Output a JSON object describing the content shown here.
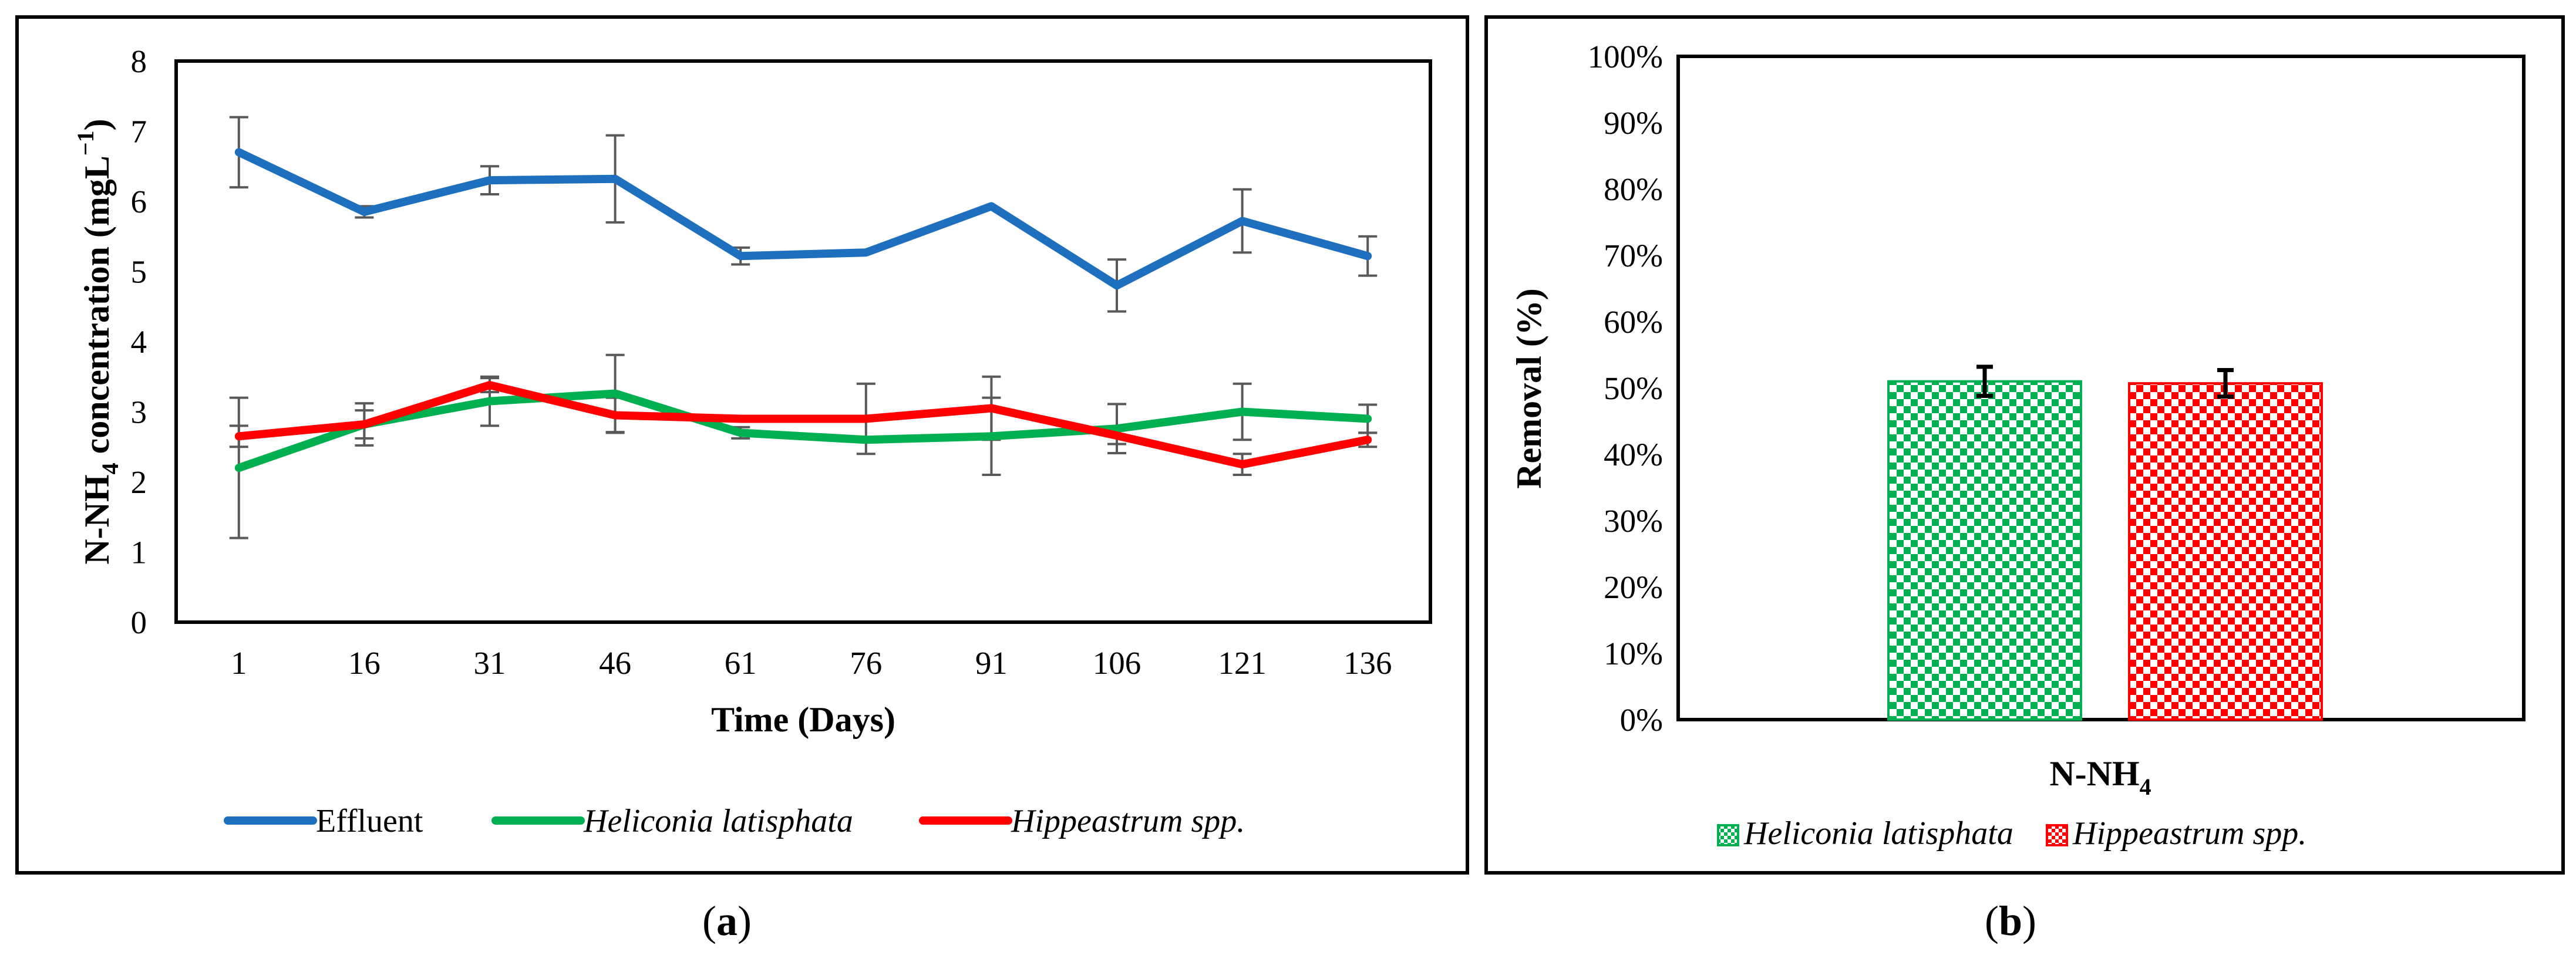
{
  "chart_data": [
    {
      "id": "a",
      "type": "line",
      "panel_label": "a",
      "x": [
        1,
        16,
        31,
        46,
        61,
        76,
        91,
        106,
        121,
        136
      ],
      "xlabel": "Time (Days)",
      "ylabel_parts": [
        "N-NH",
        "4",
        " concentration (mgL",
        "−1",
        ")"
      ],
      "ylim": [
        0,
        8
      ],
      "yticks": [
        0,
        1,
        2,
        3,
        4,
        5,
        6,
        7,
        8
      ],
      "grid": false,
      "legend": "bottom",
      "series": [
        {
          "name": "Effluent",
          "italic": false,
          "color": "#1f6fbf",
          "values": [
            6.7,
            5.85,
            6.3,
            6.32,
            5.22,
            5.27,
            5.93,
            4.8,
            5.72,
            5.22
          ],
          "errors": [
            0.5,
            0.08,
            0.2,
            0.62,
            0.12,
            0,
            0,
            0.37,
            0.45,
            0.28
          ]
        },
        {
          "name": "Heliconia latisphata",
          "italic": true,
          "color": "#00b050",
          "values": [
            2.2,
            2.82,
            3.15,
            3.26,
            2.7,
            2.6,
            2.65,
            2.76,
            3.0,
            2.9
          ],
          "errors": [
            1.0,
            0.2,
            0.35,
            0.55,
            0.08,
            0,
            0.55,
            0.35,
            0.4,
            0.2
          ]
        },
        {
          "name": "Hippeastrum spp.",
          "italic": true,
          "color": "#ff0000",
          "values": [
            2.65,
            2.82,
            3.38,
            2.95,
            2.9,
            2.9,
            3.05,
            2.66,
            2.25,
            2.6
          ],
          "errors": [
            0.15,
            0.3,
            0.1,
            0.25,
            0,
            0.5,
            0.45,
            0.12,
            0.15,
            0.1
          ]
        }
      ]
    },
    {
      "id": "b",
      "type": "bar",
      "panel_label": "b",
      "categories": [
        "N-NH4"
      ],
      "category_label_parts": [
        "N-NH",
        "4"
      ],
      "ylabel": "Removal (%)",
      "ylim": [
        0,
        100
      ],
      "yticks": [
        "0%",
        "10%",
        "20%",
        "30%",
        "40%",
        "50%",
        "60%",
        "70%",
        "80%",
        "90%",
        "100%"
      ],
      "grid": false,
      "legend": "bottom",
      "series": [
        {
          "name": "Heliconia latisphata",
          "italic": true,
          "color": "#00b050",
          "pattern": "checkerboard",
          "values": [
            51
          ],
          "errors": [
            2.2
          ]
        },
        {
          "name": "Hippeastrum spp.",
          "italic": true,
          "color": "#ff0000",
          "pattern": "checkerboard",
          "values": [
            50.7
          ],
          "errors": [
            2.0
          ]
        }
      ]
    }
  ]
}
